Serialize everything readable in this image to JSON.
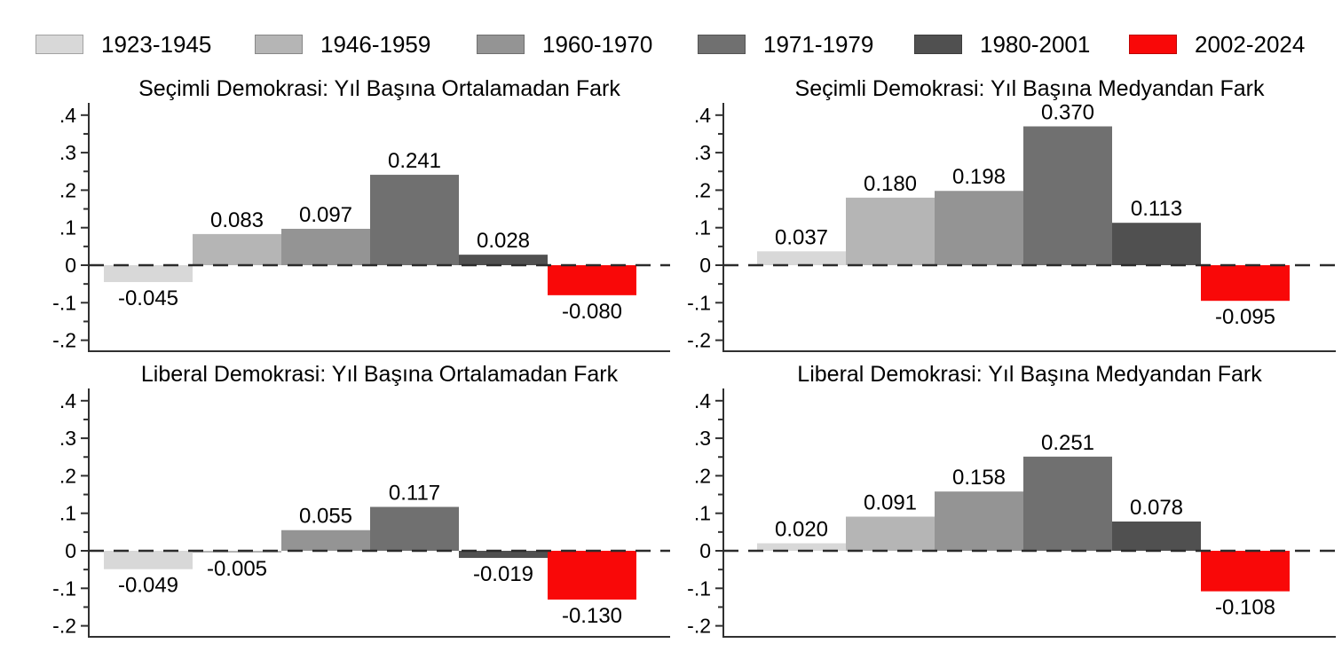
{
  "palette": {
    "period_colors": [
      "#d8d8d8",
      "#b5b5b5",
      "#949494",
      "#707070",
      "#505050",
      "#f90808"
    ],
    "axis_color": "#303030",
    "text_color": "#000000",
    "background": "#ffffff"
  },
  "legend": {
    "position": "top",
    "items": [
      {
        "label": "1923-1945",
        "color": "#d8d8d8"
      },
      {
        "label": "1946-1959",
        "color": "#b5b5b5"
      },
      {
        "label": "1960-1970",
        "color": "#949494"
      },
      {
        "label": "1971-1979",
        "color": "#707070"
      },
      {
        "label": "1980-2001",
        "color": "#505050"
      },
      {
        "label": "2002-2024",
        "color": "#f90808"
      }
    ]
  },
  "chart_data": [
    {
      "type": "bar",
      "title": "Seçimli Demokrasi: Yıl Başına Ortalamadan Fark",
      "categories": [
        "1923-1945",
        "1946-1959",
        "1960-1970",
        "1971-1979",
        "1980-2001",
        "2002-2024"
      ],
      "values": [
        -0.045,
        0.083,
        0.097,
        0.241,
        0.028,
        -0.08
      ],
      "value_labels": [
        "-0.045",
        "0.083",
        "0.097",
        "0.241",
        "0.028",
        "-0.080"
      ],
      "bar_colors": [
        "#d8d8d8",
        "#b5b5b5",
        "#949494",
        "#707070",
        "#505050",
        "#f90808"
      ],
      "xlabel": "",
      "ylabel": "",
      "ytick_labels": [
        ".4",
        ".3",
        ".2",
        ".1",
        "0",
        "-.1",
        "-.2"
      ],
      "ytick_values": [
        0.4,
        0.3,
        0.2,
        0.1,
        0,
        -0.1,
        -0.2
      ],
      "ylim": [
        -0.23,
        0.43
      ],
      "zero_line": "dashed",
      "grid": false
    },
    {
      "type": "bar",
      "title": "Seçimli Demokrasi: Yıl Başına Medyandan Fark",
      "categories": [
        "1923-1945",
        "1946-1959",
        "1960-1970",
        "1971-1979",
        "1980-2001",
        "2002-2024"
      ],
      "values": [
        0.037,
        0.18,
        0.198,
        0.37,
        0.113,
        -0.095
      ],
      "value_labels": [
        "0.037",
        "0.180",
        "0.198",
        "0.370",
        "0.113",
        "-0.095"
      ],
      "bar_colors": [
        "#d8d8d8",
        "#b5b5b5",
        "#949494",
        "#707070",
        "#505050",
        "#f90808"
      ],
      "xlabel": "",
      "ylabel": "",
      "ytick_labels": [
        ".4",
        ".3",
        ".2",
        ".1",
        "0",
        "-.1",
        "-.2"
      ],
      "ytick_values": [
        0.4,
        0.3,
        0.2,
        0.1,
        0,
        -0.1,
        -0.2
      ],
      "ylim": [
        -0.23,
        0.43
      ],
      "zero_line": "dashed",
      "grid": false
    },
    {
      "type": "bar",
      "title": "Liberal Demokrasi: Yıl Başına Ortalamadan Fark",
      "categories": [
        "1923-1945",
        "1946-1959",
        "1960-1970",
        "1971-1979",
        "1980-2001",
        "2002-2024"
      ],
      "values": [
        -0.049,
        -0.005,
        0.055,
        0.117,
        -0.019,
        -0.13
      ],
      "value_labels": [
        "-0.049",
        "-0.005",
        "0.055",
        "0.117",
        "-0.019",
        "-0.130"
      ],
      "bar_colors": [
        "#d8d8d8",
        "#b5b5b5",
        "#949494",
        "#707070",
        "#505050",
        "#f90808"
      ],
      "xlabel": "",
      "ylabel": "",
      "ytick_labels": [
        ".4",
        ".3",
        ".2",
        ".1",
        "0",
        "-.1",
        "-.2"
      ],
      "ytick_values": [
        0.4,
        0.3,
        0.2,
        0.1,
        0,
        -0.1,
        -0.2
      ],
      "ylim": [
        -0.23,
        0.43
      ],
      "zero_line": "dashed",
      "grid": false
    },
    {
      "type": "bar",
      "title": "Liberal Demokrasi: Yıl Başına Medyandan Fark",
      "categories": [
        "1923-1945",
        "1946-1959",
        "1960-1970",
        "1971-1979",
        "1980-2001",
        "2002-2024"
      ],
      "values": [
        0.02,
        0.091,
        0.158,
        0.251,
        0.078,
        -0.108
      ],
      "value_labels": [
        "0.020",
        "0.091",
        "0.158",
        "0.251",
        "0.078",
        "-0.108"
      ],
      "bar_colors": [
        "#d8d8d8",
        "#b5b5b5",
        "#949494",
        "#707070",
        "#505050",
        "#f90808"
      ],
      "xlabel": "",
      "ylabel": "",
      "ytick_labels": [
        ".4",
        ".3",
        ".2",
        ".1",
        "0",
        "-.1",
        "-.2"
      ],
      "ytick_values": [
        0.4,
        0.3,
        0.2,
        0.1,
        0,
        -0.1,
        -0.2
      ],
      "ylim": [
        -0.23,
        0.43
      ],
      "zero_line": "dashed",
      "grid": false
    }
  ]
}
